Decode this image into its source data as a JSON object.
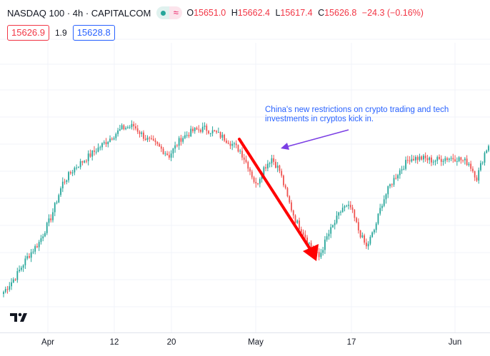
{
  "header": {
    "title": "NASDAQ 100 · 4h · CAPITALCOM",
    "ohlc": {
      "open_label": "O",
      "open": "15651.0",
      "high_label": "H",
      "high": "15662.4",
      "low_label": "L",
      "low": "15617.4",
      "close_label": "C",
      "close": "15626.8",
      "change": "−24.3 (−0.16%)"
    },
    "bid": "15626.9",
    "spread": "1.9",
    "ask": "15628.8"
  },
  "colors": {
    "up": "#26a69a",
    "down": "#ef5350",
    "arrow": "#ff0000",
    "annotation": "#2962ff",
    "annotation_arrow": "#7b3fe4",
    "grid": "#f0f3fa"
  },
  "icons": {
    "logo": "tradingview-logo-icon"
  },
  "chart_data": {
    "type": "candlestick",
    "symbol": "NASDAQ 100",
    "interval": "4h",
    "x_ticks": [
      "Apr",
      "12",
      "20",
      "May",
      "17",
      "Jun"
    ],
    "grid": true,
    "price_range": [
      15300,
      15750
    ],
    "trend_anchors": [
      [
        0,
        15330
      ],
      [
        6,
        15360
      ],
      [
        12,
        15400
      ],
      [
        18,
        15430
      ],
      [
        24,
        15480
      ],
      [
        30,
        15550
      ],
      [
        36,
        15580
      ],
      [
        42,
        15600
      ],
      [
        48,
        15620
      ],
      [
        54,
        15640
      ],
      [
        60,
        15660
      ],
      [
        66,
        15665
      ],
      [
        72,
        15640
      ],
      [
        78,
        15625
      ],
      [
        84,
        15605
      ],
      [
        90,
        15640
      ],
      [
        96,
        15655
      ],
      [
        102,
        15660
      ],
      [
        108,
        15650
      ],
      [
        114,
        15635
      ],
      [
        120,
        15615
      ],
      [
        124,
        15585
      ],
      [
        128,
        15545
      ],
      [
        132,
        15580
      ],
      [
        136,
        15600
      ],
      [
        140,
        15575
      ],
      [
        144,
        15520
      ],
      [
        148,
        15475
      ],
      [
        152,
        15450
      ],
      [
        156,
        15420
      ],
      [
        160,
        15400
      ],
      [
        164,
        15440
      ],
      [
        168,
        15470
      ],
      [
        172,
        15500
      ],
      [
        176,
        15500
      ],
      [
        180,
        15455
      ],
      [
        184,
        15420
      ],
      [
        188,
        15455
      ],
      [
        192,
        15510
      ],
      [
        196,
        15545
      ],
      [
        200,
        15570
      ],
      [
        206,
        15600
      ],
      [
        212,
        15600
      ],
      [
        218,
        15595
      ],
      [
        224,
        15600
      ],
      [
        230,
        15600
      ],
      [
        236,
        15590
      ],
      [
        240,
        15560
      ],
      [
        244,
        15610
      ],
      [
        246,
        15626.8
      ]
    ],
    "annotations": [
      {
        "text": "China's new restrictions on crypto trading and tech investments in cryptos kick in."
      }
    ]
  }
}
